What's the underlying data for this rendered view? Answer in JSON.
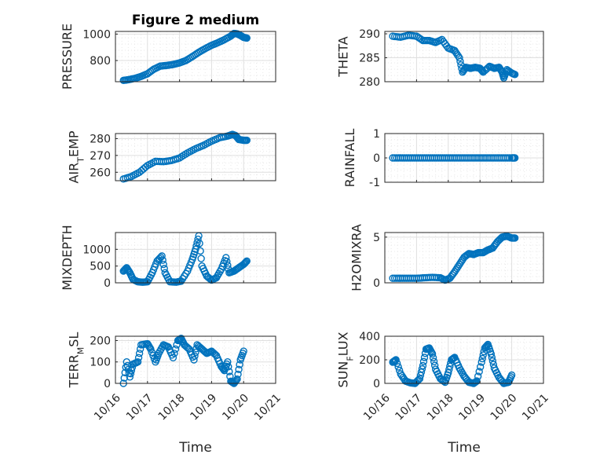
{
  "title": "Figure 2 medium",
  "x_axis_label": "Time",
  "x_ticks": [
    "10/16",
    "10/17",
    "10/18",
    "10/19",
    "10/20",
    "10/21"
  ],
  "colors": {
    "marker": "#0072BD",
    "grid": "#dfdfdf",
    "axis": "#262626"
  },
  "chart_data": [
    {
      "type": "scatter",
      "name": "PRESSURE",
      "ylabel": "PRESSURE",
      "ylim": [
        640,
        1020
      ],
      "yticks": [
        800,
        1000
      ],
      "ytick_labels": [
        "800",
        "1000"
      ],
      "title": "Figure 2 medium",
      "xlabel_ticks": false,
      "points": [
        [
          16.25,
          650
        ],
        [
          16.4,
          655
        ],
        [
          16.6,
          665
        ],
        [
          16.8,
          680
        ],
        [
          17,
          700
        ],
        [
          17.2,
          735
        ],
        [
          17.4,
          758
        ],
        [
          17.6,
          763
        ],
        [
          17.8,
          770
        ],
        [
          18,
          782
        ],
        [
          18.2,
          800
        ],
        [
          18.4,
          830
        ],
        [
          18.6,
          862
        ],
        [
          18.8,
          890
        ],
        [
          19,
          915
        ],
        [
          19.2,
          935
        ],
        [
          19.4,
          958
        ],
        [
          19.6,
          985
        ],
        [
          19.7,
          1005
        ],
        [
          19.8,
          1002
        ],
        [
          19.9,
          990
        ],
        [
          20,
          975
        ],
        [
          20.1,
          970
        ]
      ]
    },
    {
      "type": "scatter",
      "name": "THETA",
      "ylabel": "THETA",
      "ylim": [
        280,
        290.5
      ],
      "yticks": [
        280,
        285,
        290
      ],
      "ytick_labels": [
        "280",
        "285",
        "290"
      ],
      "xlabel_ticks": false,
      "points": [
        [
          16.25,
          289.5
        ],
        [
          16.5,
          289.3
        ],
        [
          16.75,
          289.7
        ],
        [
          17,
          289.5
        ],
        [
          17.2,
          288.6
        ],
        [
          17.4,
          288.6
        ],
        [
          17.6,
          288.2
        ],
        [
          17.8,
          288.8
        ],
        [
          18,
          287
        ],
        [
          18.2,
          286.5
        ],
        [
          18.35,
          285
        ],
        [
          18.45,
          282
        ],
        [
          18.55,
          283
        ],
        [
          18.7,
          282.8
        ],
        [
          18.85,
          283
        ],
        [
          19,
          282.8
        ],
        [
          19.1,
          282
        ],
        [
          19.3,
          283.2
        ],
        [
          19.45,
          282.8
        ],
        [
          19.6,
          283
        ],
        [
          19.7,
          282
        ],
        [
          19.75,
          280.8
        ],
        [
          19.85,
          282.5
        ],
        [
          20,
          281.8
        ],
        [
          20.1,
          281.5
        ]
      ]
    },
    {
      "type": "scatter",
      "name": "AIR_TEMP",
      "ylabel": "AIR_TEMP",
      "ylim": [
        255,
        283
      ],
      "yticks": [
        260,
        270,
        280
      ],
      "ytick_labels": [
        "260",
        "270",
        "280"
      ],
      "xlabel_ticks": false,
      "points": [
        [
          16.25,
          256
        ],
        [
          16.5,
          257.5
        ],
        [
          16.75,
          260
        ],
        [
          17,
          264
        ],
        [
          17.25,
          266.5
        ],
        [
          17.5,
          266.3
        ],
        [
          17.75,
          267
        ],
        [
          18,
          268.5
        ],
        [
          18.25,
          271.5
        ],
        [
          18.5,
          274
        ],
        [
          18.75,
          276
        ],
        [
          19,
          278.5
        ],
        [
          19.25,
          280.5
        ],
        [
          19.5,
          281.5
        ],
        [
          19.65,
          282.5
        ],
        [
          19.75,
          281.8
        ],
        [
          19.85,
          279.5
        ],
        [
          20,
          279
        ],
        [
          20.1,
          279
        ]
      ]
    },
    {
      "type": "scatter",
      "name": "RAINFALL",
      "ylabel": "RAINFALL",
      "ylim": [
        -1,
        1
      ],
      "yticks": [
        -1,
        0,
        1
      ],
      "ytick_labels": [
        "-1",
        "0",
        "1"
      ],
      "xlabel_ticks": false,
      "points": [
        [
          16.25,
          0
        ],
        [
          16.5,
          0
        ],
        [
          16.75,
          0
        ],
        [
          17,
          0
        ],
        [
          17.25,
          0
        ],
        [
          17.5,
          0
        ],
        [
          17.75,
          0
        ],
        [
          18,
          0
        ],
        [
          18.25,
          0
        ],
        [
          18.5,
          0
        ],
        [
          18.75,
          0
        ],
        [
          19,
          0
        ],
        [
          19.25,
          0
        ],
        [
          19.5,
          0
        ],
        [
          19.75,
          0
        ],
        [
          20,
          0
        ],
        [
          20.1,
          0
        ]
      ]
    },
    {
      "type": "scatter",
      "name": "MIXDEPTH",
      "ylabel": "MIXDEPTH",
      "ylim": [
        0,
        1500
      ],
      "yticks": [
        0,
        500,
        1000
      ],
      "ytick_labels": [
        "0",
        "500",
        "1000"
      ],
      "xlabel_ticks": false,
      "points": [
        [
          16.25,
          350
        ],
        [
          16.35,
          450
        ],
        [
          16.45,
          300
        ],
        [
          16.55,
          100
        ],
        [
          16.7,
          30
        ],
        [
          16.85,
          20
        ],
        [
          17,
          30
        ],
        [
          17.15,
          300
        ],
        [
          17.3,
          650
        ],
        [
          17.45,
          800
        ],
        [
          17.55,
          300
        ],
        [
          17.7,
          30
        ],
        [
          17.9,
          20
        ],
        [
          18.05,
          50
        ],
        [
          18.25,
          350
        ],
        [
          18.4,
          700
        ],
        [
          18.5,
          1000
        ],
        [
          18.6,
          1400
        ],
        [
          18.7,
          500
        ],
        [
          18.85,
          200
        ],
        [
          19,
          80
        ],
        [
          19.15,
          150
        ],
        [
          19.3,
          400
        ],
        [
          19.45,
          750
        ],
        [
          19.55,
          300
        ],
        [
          19.7,
          350
        ],
        [
          19.85,
          450
        ],
        [
          20,
          550
        ],
        [
          20.1,
          650
        ]
      ]
    },
    {
      "type": "scatter",
      "name": "H2OMIXRA",
      "ylabel": "H2OMIXRA",
      "ylim": [
        0,
        5.5
      ],
      "yticks": [
        0,
        5
      ],
      "ytick_labels": [
        "0",
        "5"
      ],
      "xlabel_ticks": false,
      "points": [
        [
          16.25,
          0.5
        ],
        [
          16.5,
          0.5
        ],
        [
          16.75,
          0.5
        ],
        [
          17,
          0.5
        ],
        [
          17.25,
          0.55
        ],
        [
          17.5,
          0.6
        ],
        [
          17.75,
          0.55
        ],
        [
          17.9,
          0.3
        ],
        [
          18.05,
          0.5
        ],
        [
          18.2,
          1.2
        ],
        [
          18.35,
          2
        ],
        [
          18.5,
          2.8
        ],
        [
          18.65,
          3.2
        ],
        [
          18.8,
          3.1
        ],
        [
          18.95,
          3.3
        ],
        [
          19.1,
          3.3
        ],
        [
          19.25,
          3.6
        ],
        [
          19.4,
          3.8
        ],
        [
          19.55,
          4.5
        ],
        [
          19.7,
          5
        ],
        [
          19.85,
          5.1
        ],
        [
          20,
          4.9
        ],
        [
          20.1,
          4.9
        ]
      ]
    },
    {
      "type": "scatter",
      "name": "TERR_MSL",
      "ylabel": "TERR_MSL",
      "ylim": [
        0,
        220
      ],
      "yticks": [
        0,
        100,
        200
      ],
      "ytick_labels": [
        "0",
        "100",
        "200"
      ],
      "xlabel_ticks": true,
      "points": [
        [
          16.25,
          0
        ],
        [
          16.35,
          100
        ],
        [
          16.45,
          30
        ],
        [
          16.55,
          90
        ],
        [
          16.7,
          100
        ],
        [
          16.8,
          180
        ],
        [
          17,
          185
        ],
        [
          17.1,
          160
        ],
        [
          17.25,
          100
        ],
        [
          17.35,
          140
        ],
        [
          17.5,
          180
        ],
        [
          17.65,
          170
        ],
        [
          17.8,
          120
        ],
        [
          17.95,
          200
        ],
        [
          18.05,
          210
        ],
        [
          18.15,
          180
        ],
        [
          18.3,
          160
        ],
        [
          18.45,
          110
        ],
        [
          18.55,
          180
        ],
        [
          18.7,
          160
        ],
        [
          18.85,
          140
        ],
        [
          19,
          150
        ],
        [
          19.15,
          130
        ],
        [
          19.3,
          80
        ],
        [
          19.4,
          60
        ],
        [
          19.5,
          100
        ],
        [
          19.6,
          10
        ],
        [
          19.7,
          0
        ],
        [
          19.8,
          20
        ],
        [
          19.9,
          110
        ],
        [
          20,
          150
        ]
      ]
    },
    {
      "type": "scatter",
      "name": "SUN_FLUX",
      "ylabel": "SUN_FLUX",
      "ylim": [
        0,
        400
      ],
      "yticks": [
        0,
        200,
        400
      ],
      "ytick_labels": [
        "0",
        "200",
        "400"
      ],
      "xlabel_ticks": true,
      "points": [
        [
          16.25,
          180
        ],
        [
          16.35,
          200
        ],
        [
          16.5,
          80
        ],
        [
          16.65,
          20
        ],
        [
          16.8,
          5
        ],
        [
          16.95,
          0
        ],
        [
          17.1,
          40
        ],
        [
          17.2,
          150
        ],
        [
          17.3,
          290
        ],
        [
          17.4,
          300
        ],
        [
          17.5,
          250
        ],
        [
          17.6,
          120
        ],
        [
          17.75,
          40
        ],
        [
          17.9,
          10
        ],
        [
          18,
          90
        ],
        [
          18.1,
          200
        ],
        [
          18.2,
          220
        ],
        [
          18.35,
          130
        ],
        [
          18.5,
          60
        ],
        [
          18.65,
          10
        ],
        [
          18.8,
          0
        ],
        [
          18.9,
          20
        ],
        [
          19.05,
          180
        ],
        [
          19.15,
          300
        ],
        [
          19.25,
          330
        ],
        [
          19.35,
          250
        ],
        [
          19.45,
          130
        ],
        [
          19.6,
          50
        ],
        [
          19.75,
          0
        ],
        [
          19.9,
          10
        ],
        [
          20,
          70
        ]
      ]
    }
  ]
}
